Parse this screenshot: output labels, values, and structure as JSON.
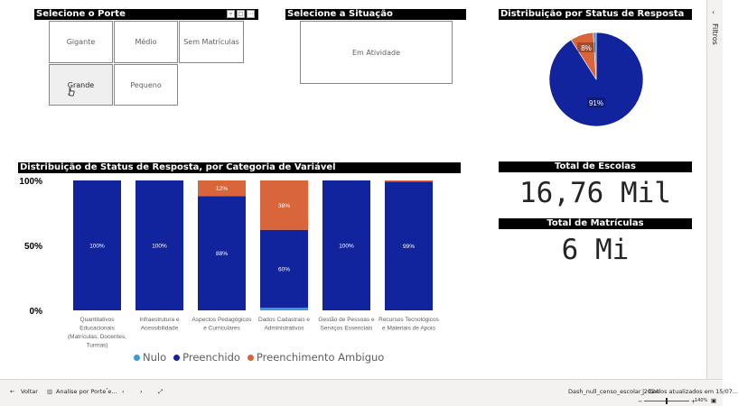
{
  "porte": {
    "title": "Selecione o Porte",
    "options": [
      "Gigante",
      "Médio",
      "Sem Matrículas",
      "Grande",
      "Pequeno"
    ],
    "selected": "Grande"
  },
  "situacao": {
    "title": "Selecione a Situação",
    "options": [
      "Em Atividade"
    ]
  },
  "pie": {
    "title": "Distribuição por Status de Resposta",
    "labels": [
      "91%",
      "8%"
    ]
  },
  "bar_title": "Distribuição de Status de Resposta, por Categoria de Variável",
  "legend": {
    "items": [
      "Nulo",
      "Preenchido",
      "Preenchimento Ambiguo"
    ]
  },
  "kpis": {
    "escolas_title": "Total de Escolas",
    "escolas_value": "16,76 Mil",
    "matriculas_title": "Total de Matrículas",
    "matriculas_value": "6 Mi"
  },
  "filters_label": "Filtros",
  "statusbar": {
    "back_label": "Voltar",
    "page_tab": "Analise por Porte e...",
    "file_name": "Dash_null_censo_escolar_2024",
    "separator": "|",
    "updated": "Dados atualizados em 15/07...",
    "zoom": "140%"
  },
  "colors": {
    "nulo": "#3a9ad9",
    "preenchido": "#12239e",
    "ambiguo": "#d9653b"
  },
  "chart_data": [
    {
      "type": "pie",
      "title": "Distribuição por Status de Resposta",
      "categories": [
        "Preenchido",
        "Preenchimento Ambiguo",
        "Nulo"
      ],
      "values": [
        91,
        8,
        1
      ],
      "labels_shown": [
        "91%",
        "8%"
      ]
    },
    {
      "type": "bar",
      "stacked": true,
      "percent_stacked": true,
      "title": "Distribuição de Status de Resposta, por Categoria de Variável",
      "categories": [
        "Quantitativos Educacionais (Matrículas, Docentes, Turmas)",
        "Infraestrutura e Acessibilidade",
        "Aspectos Pedagógicos e Curriculares",
        "Dados Cadastrais e Administrativos",
        "Gestão de Pessoas e Serviços Essenciais",
        "Recursos Tecnológicos e Materiais de Apoio"
      ],
      "category_lines": [
        [
          "Quantitativos",
          "Educacionais",
          "(Matrículas, Docentes,",
          "Turmas)"
        ],
        [
          "Infraestrutura e",
          "Acessibilidade"
        ],
        [
          "Aspectos Pedagógicos",
          "e Curriculares"
        ],
        [
          "Dados Cadastrais e",
          "Administrativos"
        ],
        [
          "Gestão de Pessoas e",
          "Serviços Essenciais"
        ],
        [
          "Recursos Tecnológicos",
          "e Materiais de Apoio"
        ]
      ],
      "series": [
        {
          "name": "Nulo",
          "values": [
            0,
            0,
            0,
            2,
            0,
            0
          ],
          "labels": [
            "",
            "",
            "",
            "",
            "",
            ""
          ]
        },
        {
          "name": "Preenchido",
          "values": [
            100,
            100,
            88,
            60,
            100,
            99
          ],
          "labels": [
            "100%",
            "100%",
            "88%",
            "60%",
            "100%",
            "99%"
          ]
        },
        {
          "name": "Preenchimento Ambiguo",
          "values": [
            0,
            0,
            12,
            38,
            0,
            1
          ],
          "labels": [
            "",
            "",
            "12%",
            "38%",
            "",
            ""
          ]
        }
      ],
      "ylim": [
        0,
        100
      ],
      "yticks": [
        "0%",
        "50%",
        "100%"
      ],
      "grid": false,
      "legend": "bottom"
    }
  ]
}
